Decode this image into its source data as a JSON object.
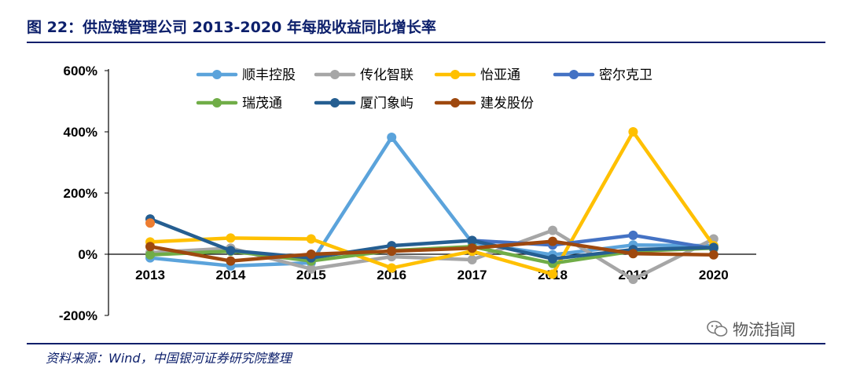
{
  "figure_title": "图 22：供应链管理公司 2013-2020 年每股收益同比增长率",
  "source_note": "资料来源：Wind，中国银河证券研究院整理",
  "watermark": {
    "icon": "wechat-icon",
    "text": "物流指闻"
  },
  "chart_data": {
    "type": "line",
    "title": "",
    "xlabel": "",
    "ylabel": "",
    "categories": [
      "2013",
      "2014",
      "2015",
      "2016",
      "2017",
      "2018",
      "2019",
      "2020"
    ],
    "ylim": [
      -200,
      600
    ],
    "yticks": [
      -200,
      0,
      200,
      400,
      600
    ],
    "ytick_labels": [
      "-200%",
      "0%",
      "200%",
      "400%",
      "600%"
    ],
    "legend_position": "top",
    "series": [
      {
        "name": "顺丰控股",
        "color": "#5ba3db",
        "values": [
          -12,
          -38,
          -28,
          382,
          38,
          -2,
          30,
          28
        ]
      },
      {
        "name": "传化智联",
        "color": "#a6a6a6",
        "values": [
          5,
          20,
          -48,
          -8,
          -18,
          78,
          -82,
          50
        ]
      },
      {
        "name": "怡亚通",
        "color": "#ffc000",
        "values": [
          40,
          53,
          50,
          -45,
          10,
          -65,
          400,
          28
        ]
      },
      {
        "name": "密尔克卫",
        "color": "#4472c4",
        "values": [
          null,
          null,
          null,
          null,
          45,
          30,
          62,
          18
        ]
      },
      {
        "name": "瑞茂通",
        "color": "#70ad47",
        "values": [
          -2,
          10,
          -22,
          12,
          25,
          -30,
          10,
          20
        ]
      },
      {
        "name": "厦门象屿",
        "color": "#255e91",
        "values": [
          115,
          12,
          -12,
          28,
          45,
          -15,
          15,
          22
        ]
      },
      {
        "name": "建发股份",
        "color": "#9e480e",
        "values": [
          25,
          -22,
          0,
          10,
          20,
          42,
          2,
          -2
        ]
      }
    ],
    "annotations": [
      {
        "label": "2013 orange marker",
        "color": "#ed7d31",
        "x": "2013",
        "value": 102
      }
    ]
  }
}
